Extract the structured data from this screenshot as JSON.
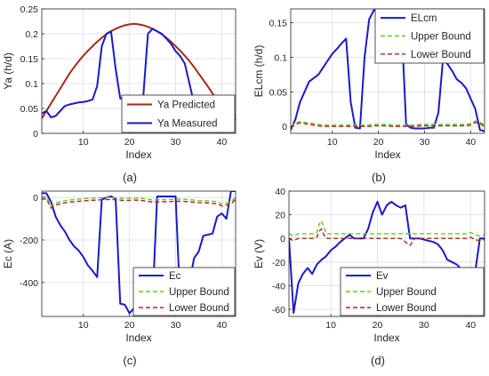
{
  "chart_data": [
    {
      "type": "line",
      "caption": "(a)",
      "xlabel": "Index",
      "ylabel": "Ya (h/d)",
      "xlim": [
        1,
        43
      ],
      "ylim": [
        0,
        0.25
      ],
      "xticks": [
        10,
        20,
        30,
        40
      ],
      "yticks": [
        0,
        0.05,
        0.1,
        0.15,
        0.2,
        0.25
      ],
      "ytick_labels": [
        "0",
        "0.05",
        "0.1",
        "0.15",
        "0.2",
        "0.25"
      ],
      "grid": true,
      "legend_position": "bottom-right",
      "x": [
        1,
        2,
        3,
        4,
        5,
        6,
        7,
        8,
        9,
        10,
        11,
        12,
        13,
        14,
        15,
        16,
        17,
        18,
        19,
        20,
        21,
        22,
        23,
        24,
        25,
        26,
        27,
        28,
        29,
        30,
        31,
        32,
        33,
        34,
        35,
        36,
        37,
        38,
        39,
        40,
        41,
        42,
        43
      ],
      "series": [
        {
          "name": "Ya Predicted",
          "color": "#a52a1a",
          "values": [
            0.03,
            0.045,
            0.06,
            0.075,
            0.09,
            0.105,
            0.12,
            0.133,
            0.145,
            0.156,
            0.166,
            0.175,
            0.184,
            0.192,
            0.199,
            0.205,
            0.21,
            0.214,
            0.217,
            0.219,
            0.22,
            0.219,
            0.217,
            0.214,
            0.21,
            0.205,
            0.199,
            0.192,
            0.184,
            0.175,
            0.166,
            0.156,
            0.145,
            0.133,
            0.12,
            0.107,
            0.094,
            0.08,
            0.066,
            0.053,
            0.042,
            0.035,
            0.028
          ]
        },
        {
          "name": "Ya Measured",
          "color": "#1a1acd",
          "values": [
            0.04,
            0.045,
            0.032,
            0.035,
            0.045,
            0.055,
            0.058,
            0.06,
            0.062,
            0.063,
            0.065,
            0.068,
            0.095,
            0.175,
            0.2,
            0.205,
            0.13,
            0.07,
            0.068,
            0.075,
            0.075,
            0.073,
            0.075,
            0.2,
            0.21,
            0.205,
            0.2,
            0.19,
            0.18,
            0.165,
            0.155,
            0.14,
            0.1,
            0.06,
            0.055,
            0.05,
            0.05,
            0.045,
            0.035,
            0.035,
            0.04,
            0.045,
            0.035
          ]
        }
      ]
    },
    {
      "type": "line",
      "caption": "(b)",
      "xlabel": "Index",
      "ylabel": "ELcm (h/d)",
      "xlim": [
        1,
        43
      ],
      "ylim": [
        -0.01,
        0.17
      ],
      "xticks": [
        10,
        20,
        30,
        40
      ],
      "yticks": [
        0,
        0.05,
        0.1,
        0.15
      ],
      "ytick_labels": [
        "0",
        "0.05",
        "0.1",
        "0.15"
      ],
      "grid": true,
      "legend_position": "top-right",
      "x": [
        1,
        2,
        3,
        4,
        5,
        6,
        7,
        8,
        9,
        10,
        11,
        12,
        13,
        14,
        15,
        16,
        17,
        18,
        19,
        20,
        21,
        22,
        23,
        24,
        25,
        26,
        27,
        28,
        29,
        30,
        31,
        32,
        33,
        34,
        35,
        36,
        37,
        38,
        39,
        40,
        41,
        42,
        43
      ],
      "series": [
        {
          "name": "ELcm",
          "color": "#1a1acd",
          "values": [
            -0.005,
            0.01,
            0.035,
            0.05,
            0.065,
            0.07,
            0.075,
            0.085,
            0.095,
            0.105,
            0.112,
            0.12,
            0.127,
            0.035,
            -0.002,
            -0.003,
            0.1,
            0.155,
            0.168,
            0.166,
            0.158,
            0.16,
            0.162,
            0.16,
            0.15,
            0.003,
            -0.002,
            -0.003,
            -0.003,
            -0.003,
            -0.002,
            -0.002,
            0.02,
            0.098,
            0.09,
            0.08,
            0.068,
            0.063,
            0.055,
            0.04,
            0.025,
            -0.005,
            -0.007
          ]
        },
        {
          "name": "Upper Bound",
          "color": "#66cc22",
          "dash": "dash",
          "values": [
            0,
            0.005,
            0.007,
            0.006,
            0.005,
            0.004,
            0.003,
            0.002,
            0.002,
            0.002,
            0.002,
            0.002,
            0.002,
            0.002,
            0.002,
            0.002,
            0.002,
            0.002,
            0.003,
            0.003,
            0.003,
            0.003,
            0.002,
            0.002,
            0.002,
            0.002,
            0.002,
            0.002,
            0.003,
            0.003,
            0.003,
            0.003,
            0.003,
            0.003,
            0.003,
            0.003,
            0.003,
            0.003,
            0.003,
            0.004,
            0.008,
            0.006,
            0.002
          ]
        },
        {
          "name": "Lower Bound",
          "color": "#b22222",
          "dash": "dash",
          "values": [
            -0.002,
            0.003,
            0.005,
            0.004,
            0.003,
            0.002,
            0.001,
            0,
            0,
            0,
            0,
            0,
            0,
            0,
            0,
            0,
            0,
            0,
            0.001,
            0.001,
            0.001,
            0.001,
            0,
            0,
            0,
            0,
            0,
            0,
            0.001,
            0.001,
            0.001,
            0.001,
            0.001,
            0.001,
            0.001,
            0.001,
            0.001,
            0.001,
            0.001,
            0.002,
            0.006,
            0.004,
            0
          ]
        }
      ]
    },
    {
      "type": "line",
      "caption": "(c)",
      "xlabel": "Index",
      "ylabel": "Ec (A)",
      "xlim": [
        1,
        43
      ],
      "ylim": [
        -560,
        30
      ],
      "xticks": [
        10,
        20,
        30,
        40
      ],
      "yticks": [
        -400,
        -200,
        0
      ],
      "ytick_labels": [
        "-400",
        "-200",
        "0"
      ],
      "grid": true,
      "legend_position": "bottom-right",
      "x": [
        1,
        2,
        3,
        4,
        5,
        6,
        7,
        8,
        9,
        10,
        11,
        12,
        13,
        14,
        15,
        16,
        17,
        18,
        19,
        20,
        21,
        22,
        23,
        24,
        25,
        26,
        27,
        28,
        29,
        30,
        31,
        32,
        33,
        34,
        35,
        36,
        37,
        38,
        39,
        40,
        41,
        42,
        43
      ],
      "series": [
        {
          "name": "Ec",
          "color": "#1a1acd",
          "values": [
            20,
            20,
            -20,
            -90,
            -130,
            -160,
            -200,
            -230,
            -250,
            -280,
            -320,
            -345,
            -375,
            -10,
            0,
            5,
            -5,
            -500,
            -505,
            -545,
            -520,
            -505,
            -510,
            -490,
            -490,
            5,
            5,
            5,
            5,
            5,
            -500,
            -505,
            -400,
            -285,
            -255,
            -180,
            -175,
            -170,
            -90,
            -75,
            -100,
            30,
            30
          ]
        },
        {
          "name": "Upper Bound",
          "color": "#66cc22",
          "dash": "dash",
          "values": [
            0,
            5,
            -40,
            -25,
            -20,
            -15,
            -12,
            -10,
            -8,
            -6,
            -4,
            -3,
            -2,
            -1,
            0,
            1,
            -1,
            -2,
            -5,
            -3,
            -2,
            -3,
            -5,
            -8,
            -12,
            -10,
            -10,
            -10,
            -9,
            -8,
            -8,
            -9,
            -10,
            -12,
            -14,
            -15,
            -16,
            -18,
            -20,
            -30,
            -25,
            -20,
            0
          ]
        },
        {
          "name": "Lower Bound",
          "color": "#b22222",
          "dash": "dash",
          "values": [
            -10,
            -5,
            -50,
            -35,
            -30,
            -25,
            -22,
            -20,
            -18,
            -16,
            -14,
            -13,
            -12,
            -11,
            -10,
            -9,
            -11,
            -12,
            -15,
            -13,
            -12,
            -13,
            -15,
            -18,
            -22,
            -20,
            -20,
            -20,
            -19,
            -18,
            -18,
            -19,
            -20,
            -22,
            -24,
            -25,
            -26,
            -28,
            -30,
            -40,
            -35,
            -30,
            -10
          ]
        }
      ]
    },
    {
      "type": "line",
      "caption": "(d)",
      "xlabel": "Index",
      "ylabel": "Ev (V)",
      "xlim": [
        1,
        43
      ],
      "ylim": [
        -66,
        40
      ],
      "xticks": [
        10,
        20,
        30,
        40
      ],
      "yticks": [
        -60,
        -40,
        -20,
        0,
        20,
        40
      ],
      "ytick_labels": [
        "-60",
        "-40",
        "-20",
        "0",
        "20",
        "40"
      ],
      "grid": true,
      "legend_position": "bottom-right",
      "x": [
        1,
        2,
        3,
        4,
        5,
        6,
        7,
        8,
        9,
        10,
        11,
        12,
        13,
        14,
        15,
        16,
        17,
        18,
        19,
        20,
        21,
        22,
        23,
        24,
        25,
        26,
        27,
        28,
        29,
        30,
        31,
        32,
        33,
        34,
        35,
        36,
        37,
        38,
        39,
        40,
        41,
        42,
        43
      ],
      "series": [
        {
          "name": "Ev",
          "color": "#1a1acd",
          "values": [
            0,
            -63,
            -38,
            -30,
            -25,
            -30,
            -22,
            -18,
            -15,
            -10,
            -7,
            -3,
            0,
            3,
            0,
            0,
            0,
            8,
            22,
            31,
            20,
            28,
            31,
            28,
            26,
            28,
            0,
            0,
            0,
            -1,
            -2,
            -3,
            -5,
            -10,
            -18,
            -20,
            -22,
            -26,
            -30,
            -25,
            -28,
            0,
            0
          ]
        },
        {
          "name": "Upper Bound",
          "color": "#66cc22",
          "dash": "dash",
          "x": [
            1,
            2,
            3,
            4,
            5,
            6,
            7,
            7.5,
            8,
            8.5,
            9,
            10,
            11,
            12,
            13,
            14,
            15,
            16,
            17,
            18,
            19,
            20,
            21,
            22,
            23,
            24,
            25,
            26,
            27,
            28,
            29,
            30,
            31,
            32,
            33,
            34,
            35,
            36,
            37,
            38,
            39,
            40,
            41,
            42,
            43
          ],
          "values": [
            4,
            2,
            4,
            4,
            4,
            4,
            5,
            12,
            15,
            10,
            4,
            4,
            4,
            4,
            4,
            4,
            4,
            4,
            4,
            4,
            4,
            4,
            4,
            4,
            4,
            4,
            4,
            4,
            4,
            4,
            4,
            4,
            4,
            4,
            4,
            4,
            4,
            4,
            4,
            4,
            4,
            5,
            3,
            2,
            3
          ]
        },
        {
          "name": "Lower Bound",
          "color": "#b22222",
          "dash": "dash",
          "x": [
            1,
            2,
            3,
            4,
            5,
            6,
            7,
            7.5,
            8,
            8.5,
            9,
            10,
            11,
            12,
            13,
            14,
            15,
            16,
            17,
            18,
            19,
            20,
            21,
            22,
            23,
            24,
            25,
            26,
            27,
            28,
            29,
            30,
            31,
            32,
            33,
            34,
            35,
            36,
            37,
            38,
            39,
            40,
            41,
            42,
            43
          ],
          "values": [
            0,
            -2,
            0,
            0,
            0,
            0,
            1,
            6,
            8,
            3,
            0,
            0,
            0,
            0,
            0,
            0,
            0,
            0,
            0,
            0,
            0,
            0,
            0,
            0,
            0,
            0,
            0,
            -3,
            -6,
            0,
            0,
            0,
            0,
            0,
            0,
            0,
            0,
            0,
            0,
            0,
            0,
            1,
            -1,
            -2,
            -1
          ]
        }
      ]
    }
  ]
}
